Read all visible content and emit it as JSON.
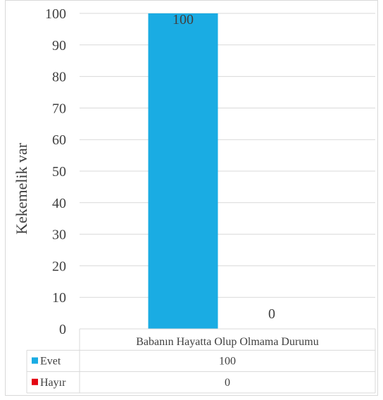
{
  "chart_data": {
    "type": "bar",
    "ylabel": "Kekemelik var",
    "categories": [
      "Babanın Hayatta Olup Olmama Durumu"
    ],
    "ylim": [
      0,
      100
    ],
    "yticks": [
      0,
      10,
      20,
      30,
      40,
      50,
      60,
      70,
      80,
      90,
      100
    ],
    "grid": true,
    "series": [
      {
        "name": "Evet",
        "values": [
          100
        ],
        "color": "#1AACE3"
      },
      {
        "name": "Hayır",
        "values": [
          0
        ],
        "color": "#E30613"
      }
    ],
    "data_labels": [
      "100",
      "0"
    ],
    "table": {
      "rows": [
        {
          "label": "Evet",
          "value": "100"
        },
        {
          "label": "Hayır",
          "value": "0"
        }
      ]
    }
  }
}
